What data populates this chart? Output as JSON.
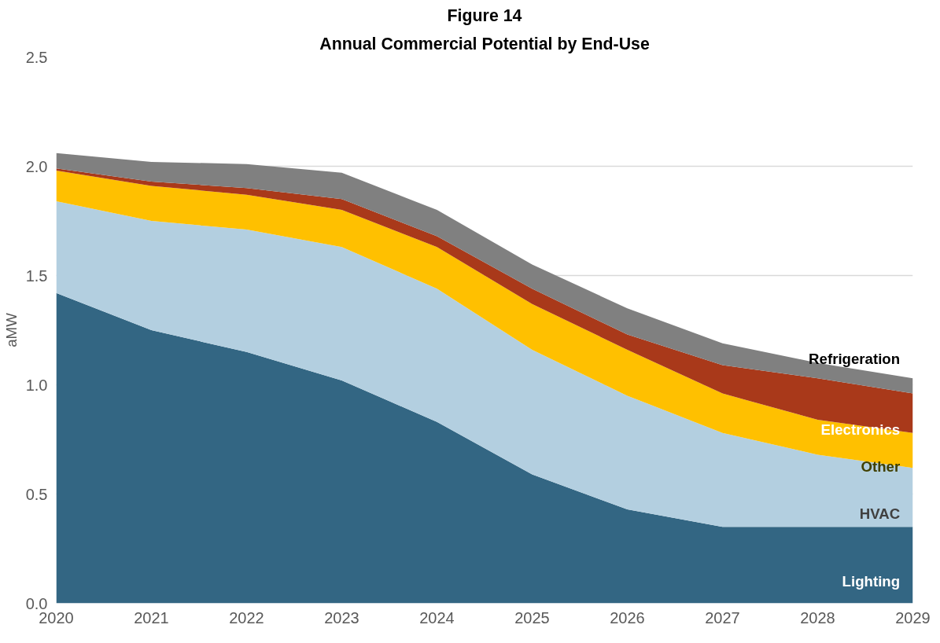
{
  "chart_data": {
    "type": "area",
    "title": "Figure 14",
    "subtitle": "Annual Commercial Potential by End-Use",
    "ylabel": "aMW",
    "x": [
      2020,
      2021,
      2022,
      2023,
      2024,
      2025,
      2026,
      2027,
      2028,
      2029
    ],
    "xlim": [
      2020,
      2029
    ],
    "xticks": [
      2020,
      2021,
      2022,
      2023,
      2024,
      2025,
      2026,
      2027,
      2028,
      2029
    ],
    "ylim": [
      0,
      2.5
    ],
    "yticks": [
      {
        "value": 0,
        "label": "0.0"
      },
      0.5,
      {
        "value": 1,
        "label": "1.0"
      },
      1.5,
      {
        "value": 2,
        "label": "2.0"
      },
      2.5
    ],
    "stacked": true,
    "grid": "y",
    "legend": false,
    "series": [
      {
        "name": "Lighting",
        "color": "#336683",
        "values": [
          1.42,
          1.25,
          1.15,
          1.02,
          0.83,
          0.59,
          0.43,
          0.35,
          0.35,
          0.35
        ]
      },
      {
        "name": "HVAC",
        "color": "#b3cfe0",
        "values": [
          0.42,
          0.5,
          0.56,
          0.61,
          0.61,
          0.57,
          0.52,
          0.43,
          0.33,
          0.27
        ]
      },
      {
        "name": "Other",
        "color": "#ffc000",
        "values": [
          0.14,
          0.16,
          0.16,
          0.17,
          0.19,
          0.21,
          0.21,
          0.18,
          0.16,
          0.16
        ]
      },
      {
        "name": "Electronics",
        "color": "#a9391a",
        "values": [
          0.01,
          0.02,
          0.03,
          0.05,
          0.05,
          0.07,
          0.07,
          0.13,
          0.19,
          0.18
        ]
      },
      {
        "name": "Refrigeration",
        "color": "#808080",
        "values": [
          0.07,
          0.09,
          0.11,
          0.12,
          0.12,
          0.11,
          0.12,
          0.1,
          0.07,
          0.07
        ]
      }
    ]
  }
}
